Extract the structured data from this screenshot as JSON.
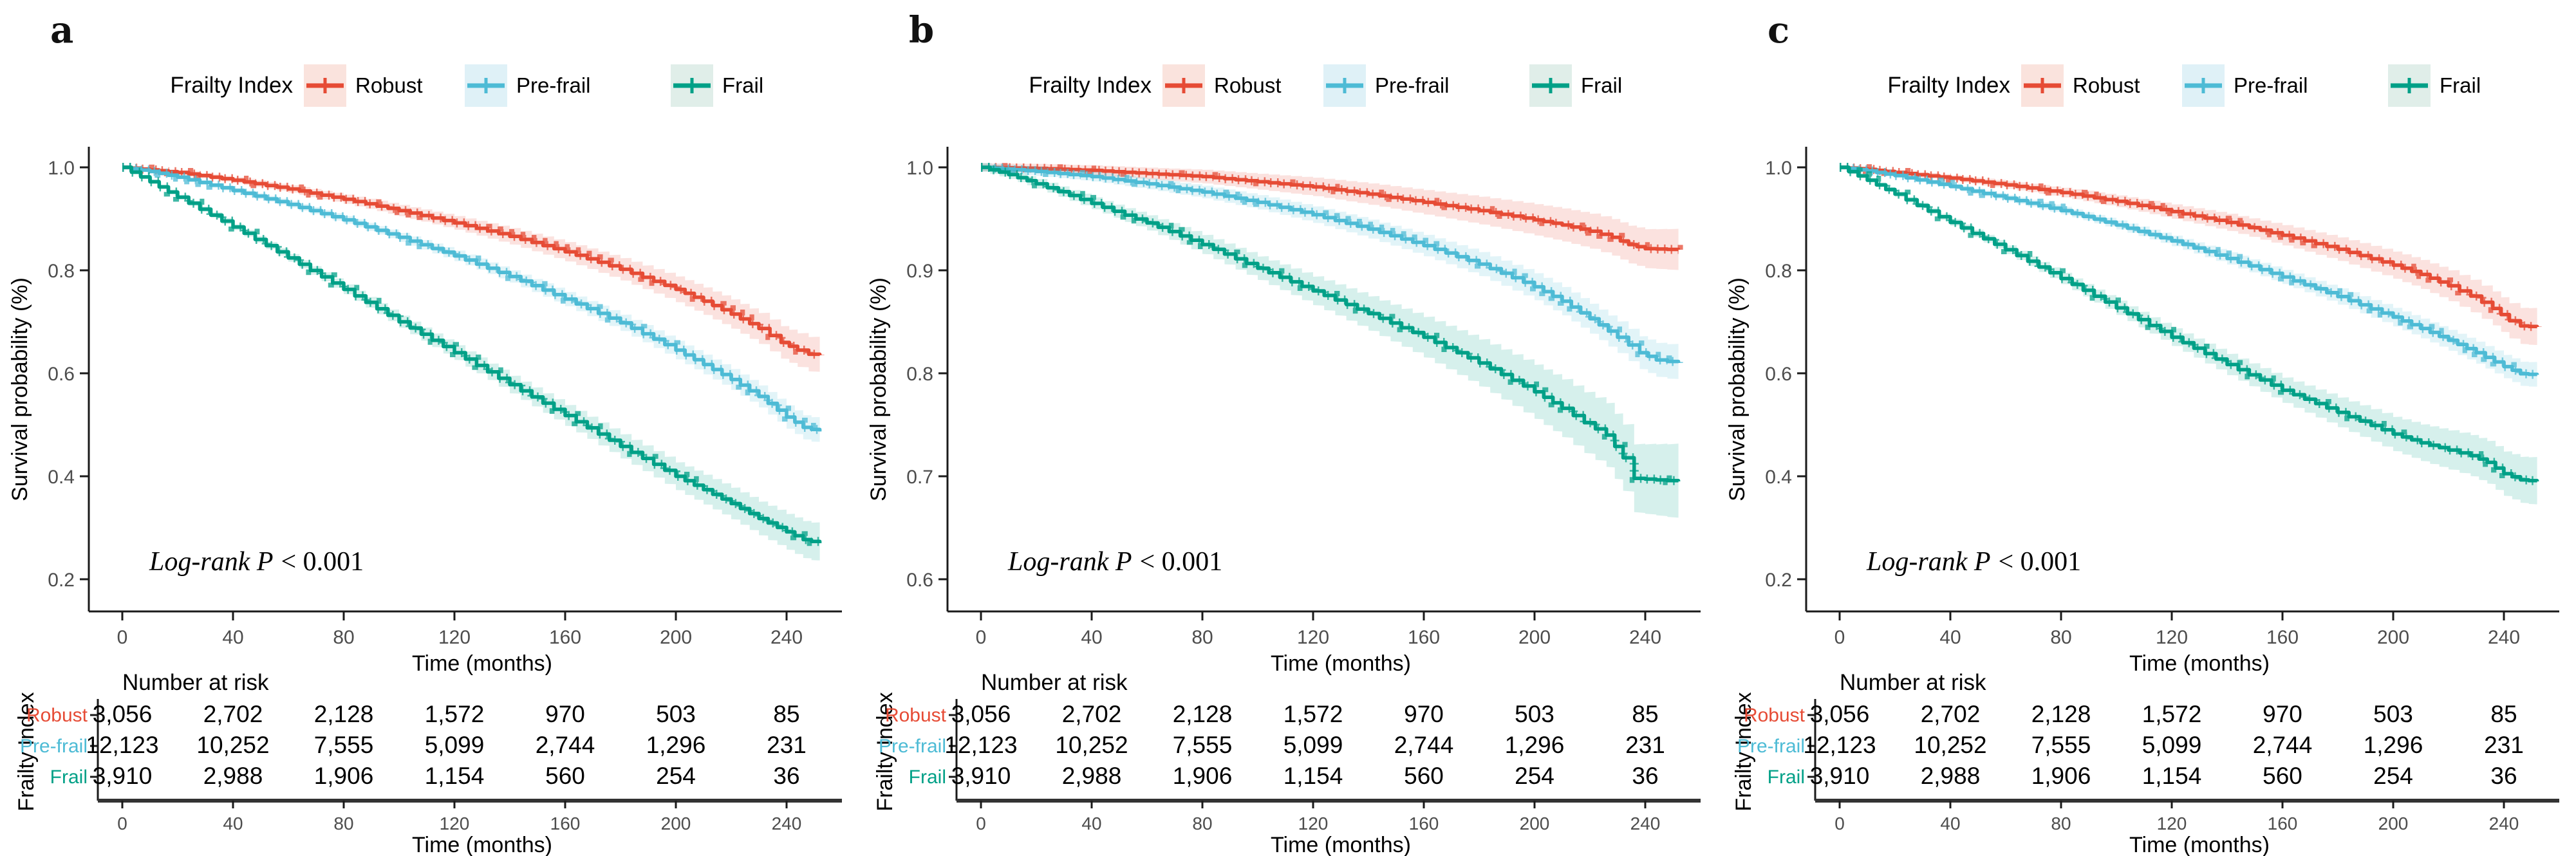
{
  "figure": {
    "ylabel": "Survival probability (%)",
    "xlabel": "Time (months)",
    "logrank_italic": "Log-rank P",
    "logrank_rest": "< 0.001",
    "xticks": [
      "0",
      "40",
      "80",
      "120",
      "160",
      "200",
      "240"
    ],
    "legend": {
      "title": "Frailty Index",
      "items": [
        {
          "label": "Robust",
          "color": "#E64B35",
          "tint": "#FAE3DD"
        },
        {
          "label": "Pre-frail",
          "color": "#4DBBD5",
          "tint": "#DFF1F7"
        },
        {
          "label": "Frail",
          "color": "#00A087",
          "tint": "#E0EEE9"
        }
      ]
    },
    "risk": {
      "title": "Number at risk",
      "axis_title": "Frailty Index",
      "rows": [
        {
          "label": "Robust",
          "color": "#E64B35",
          "counts": [
            "3,056",
            "2,702",
            "2,128",
            "1,572",
            "970",
            "503",
            "85"
          ]
        },
        {
          "label": "Pre-frail",
          "color": "#4DBBD5",
          "counts": [
            "12,123",
            "10,252",
            "7,555",
            "5,099",
            "2,744",
            "1,296",
            "231"
          ]
        },
        {
          "label": "Frail",
          "color": "#00A087",
          "counts": [
            "3,910",
            "2,988",
            "1,906",
            "1,154",
            "560",
            "254",
            "36"
          ]
        }
      ]
    },
    "panels": [
      {
        "letter": "a",
        "ytick_labels": [
          "1.0",
          "0.8",
          "0.6",
          "0.4",
          "0.2"
        ]
      },
      {
        "letter": "b",
        "ytick_labels": [
          "1.0",
          "0.9",
          "0.8",
          "0.7",
          "0.6"
        ]
      },
      {
        "letter": "c",
        "ytick_labels": [
          "1.0",
          "0.8",
          "0.6",
          "0.4",
          "0.2"
        ]
      }
    ]
  },
  "chart_data": [
    {
      "panel": "a",
      "type": "line",
      "subtype": "kaplan-meier",
      "title": "Survival by Frailty Index (panel a)",
      "xlabel": "Time (months)",
      "ylabel": "Survival probability (%)",
      "xlim": [
        0,
        252
      ],
      "ylim": [
        0.2,
        1.0
      ],
      "yticks": [
        1.0,
        0.8,
        0.6,
        0.4,
        0.2
      ],
      "xticks": [
        0,
        40,
        80,
        120,
        160,
        200,
        240
      ],
      "annotation": "Log-rank P < 0.001",
      "legend_position": "top",
      "grid": false,
      "series": [
        {
          "name": "Robust",
          "color": "#E64B35",
          "ci_end": 0.03,
          "points": [
            [
              0,
              1.0
            ],
            [
              10,
              0.995
            ],
            [
              20,
              0.99
            ],
            [
              40,
              0.975
            ],
            [
              60,
              0.958
            ],
            [
              80,
              0.938
            ],
            [
              100,
              0.916
            ],
            [
              120,
              0.892
            ],
            [
              140,
              0.866
            ],
            [
              160,
              0.836
            ],
            [
              180,
              0.802
            ],
            [
              200,
              0.763
            ],
            [
              210,
              0.74
            ],
            [
              220,
              0.715
            ],
            [
              230,
              0.687
            ],
            [
              238,
              0.66
            ],
            [
              244,
              0.645
            ],
            [
              248,
              0.637
            ],
            [
              252,
              0.635
            ]
          ]
        },
        {
          "name": "Pre-frail",
          "color": "#4DBBD5",
          "ci_end": 0.02,
          "points": [
            [
              0,
              1.0
            ],
            [
              10,
              0.992
            ],
            [
              20,
              0.981
            ],
            [
              40,
              0.955
            ],
            [
              60,
              0.928
            ],
            [
              80,
              0.898
            ],
            [
              100,
              0.864
            ],
            [
              120,
              0.828
            ],
            [
              140,
              0.788
            ],
            [
              160,
              0.744
            ],
            [
              180,
              0.698
            ],
            [
              200,
              0.645
            ],
            [
              210,
              0.617
            ],
            [
              220,
              0.588
            ],
            [
              230,
              0.555
            ],
            [
              240,
              0.515
            ],
            [
              246,
              0.495
            ],
            [
              252,
              0.487
            ]
          ]
        },
        {
          "name": "Frail",
          "color": "#00A087",
          "ci_end": 0.033,
          "points": [
            [
              0,
              1.0
            ],
            [
              10,
              0.972
            ],
            [
              20,
              0.942
            ],
            [
              40,
              0.884
            ],
            [
              60,
              0.824
            ],
            [
              80,
              0.763
            ],
            [
              100,
              0.7
            ],
            [
              120,
              0.64
            ],
            [
              140,
              0.578
            ],
            [
              160,
              0.518
            ],
            [
              180,
              0.458
            ],
            [
              200,
              0.4
            ],
            [
              210,
              0.374
            ],
            [
              220,
              0.347
            ],
            [
              230,
              0.318
            ],
            [
              240,
              0.292
            ],
            [
              246,
              0.277
            ],
            [
              252,
              0.27
            ]
          ]
        }
      ]
    },
    {
      "panel": "b",
      "type": "line",
      "subtype": "kaplan-meier",
      "title": "Survival by Frailty Index (panel b)",
      "xlabel": "Time (months)",
      "ylabel": "Survival probability (%)",
      "xlim": [
        0,
        252
      ],
      "ylim": [
        0.6,
        1.0
      ],
      "yticks": [
        1.0,
        0.9,
        0.8,
        0.7,
        0.6
      ],
      "xticks": [
        0,
        40,
        80,
        120,
        160,
        200,
        240
      ],
      "annotation": "Log-rank P < 0.001",
      "legend_position": "top",
      "grid": false,
      "series": [
        {
          "name": "Robust",
          "color": "#E64B35",
          "ci_end": 0.016,
          "points": [
            [
              0,
              1.0
            ],
            [
              20,
              0.999
            ],
            [
              40,
              0.997
            ],
            [
              60,
              0.994
            ],
            [
              80,
              0.991
            ],
            [
              100,
              0.986
            ],
            [
              120,
              0.981
            ],
            [
              140,
              0.974
            ],
            [
              160,
              0.966
            ],
            [
              180,
              0.958
            ],
            [
              200,
              0.949
            ],
            [
              210,
              0.944
            ],
            [
              220,
              0.938
            ],
            [
              228,
              0.932
            ],
            [
              234,
              0.925
            ],
            [
              240,
              0.921
            ],
            [
              252,
              0.92
            ]
          ]
        },
        {
          "name": "Pre-frail",
          "color": "#4DBBD5",
          "ci_end": 0.013,
          "points": [
            [
              0,
              1.0
            ],
            [
              20,
              0.996
            ],
            [
              40,
              0.991
            ],
            [
              60,
              0.984
            ],
            [
              80,
              0.976
            ],
            [
              100,
              0.966
            ],
            [
              120,
              0.954
            ],
            [
              140,
              0.94
            ],
            [
              160,
              0.924
            ],
            [
              180,
              0.906
            ],
            [
              200,
              0.884
            ],
            [
              210,
              0.87
            ],
            [
              220,
              0.853
            ],
            [
              230,
              0.835
            ],
            [
              238,
              0.82
            ],
            [
              244,
              0.813
            ],
            [
              252,
              0.81
            ]
          ]
        },
        {
          "name": "Frail",
          "color": "#00A087",
          "ci_end": 0.032,
          "points": [
            [
              0,
              1.0
            ],
            [
              10,
              0.993
            ],
            [
              20,
              0.984
            ],
            [
              40,
              0.965
            ],
            [
              60,
              0.946
            ],
            [
              80,
              0.925
            ],
            [
              100,
              0.902
            ],
            [
              120,
              0.88
            ],
            [
              140,
              0.858
            ],
            [
              160,
              0.835
            ],
            [
              180,
              0.81
            ],
            [
              200,
              0.782
            ],
            [
              210,
              0.766
            ],
            [
              218,
              0.752
            ],
            [
              226,
              0.74
            ],
            [
              232,
              0.718
            ],
            [
              236,
              0.698
            ],
            [
              252,
              0.695
            ]
          ]
        }
      ]
    },
    {
      "panel": "c",
      "type": "line",
      "subtype": "kaplan-meier",
      "title": "Survival by Frailty Index (panel c)",
      "xlabel": "Time (months)",
      "ylabel": "Survival probability (%)",
      "xlim": [
        0,
        252
      ],
      "ylim": [
        0.2,
        1.0
      ],
      "yticks": [
        1.0,
        0.8,
        0.6,
        0.4,
        0.2
      ],
      "xticks": [
        0,
        40,
        80,
        120,
        160,
        200,
        240
      ],
      "annotation": "Log-rank P < 0.001",
      "legend_position": "top",
      "grid": false,
      "series": [
        {
          "name": "Robust",
          "color": "#E64B35",
          "ci_end": 0.032,
          "points": [
            [
              0,
              1.0
            ],
            [
              10,
              0.996
            ],
            [
              20,
              0.99
            ],
            [
              40,
              0.979
            ],
            [
              60,
              0.966
            ],
            [
              80,
              0.951
            ],
            [
              100,
              0.934
            ],
            [
              120,
              0.914
            ],
            [
              140,
              0.893
            ],
            [
              160,
              0.868
            ],
            [
              180,
              0.841
            ],
            [
              200,
              0.81
            ],
            [
              210,
              0.792
            ],
            [
              220,
              0.77
            ],
            [
              228,
              0.75
            ],
            [
              236,
              0.726
            ],
            [
              242,
              0.702
            ],
            [
              246,
              0.692
            ],
            [
              252,
              0.69
            ]
          ]
        },
        {
          "name": "Pre-frail",
          "color": "#4DBBD5",
          "ci_end": 0.02,
          "points": [
            [
              0,
              1.0
            ],
            [
              10,
              0.993
            ],
            [
              20,
              0.984
            ],
            [
              40,
              0.963
            ],
            [
              60,
              0.94
            ],
            [
              80,
              0.916
            ],
            [
              100,
              0.888
            ],
            [
              120,
              0.857
            ],
            [
              140,
              0.823
            ],
            [
              160,
              0.787
            ],
            [
              180,
              0.749
            ],
            [
              200,
              0.709
            ],
            [
              210,
              0.687
            ],
            [
              220,
              0.664
            ],
            [
              230,
              0.64
            ],
            [
              240,
              0.613
            ],
            [
              246,
              0.599
            ],
            [
              252,
              0.597
            ]
          ]
        },
        {
          "name": "Frail",
          "color": "#00A087",
          "ci_end": 0.042,
          "points": [
            [
              0,
              1.0
            ],
            [
              10,
              0.975
            ],
            [
              20,
              0.948
            ],
            [
              40,
              0.893
            ],
            [
              60,
              0.84
            ],
            [
              80,
              0.784
            ],
            [
              100,
              0.727
            ],
            [
              120,
              0.67
            ],
            [
              140,
              0.617
            ],
            [
              160,
              0.567
            ],
            [
              180,
              0.524
            ],
            [
              200,
              0.482
            ],
            [
              210,
              0.465
            ],
            [
              220,
              0.451
            ],
            [
              228,
              0.44
            ],
            [
              234,
              0.427
            ],
            [
              240,
              0.405
            ],
            [
              246,
              0.393
            ],
            [
              252,
              0.39
            ]
          ]
        }
      ]
    }
  ]
}
